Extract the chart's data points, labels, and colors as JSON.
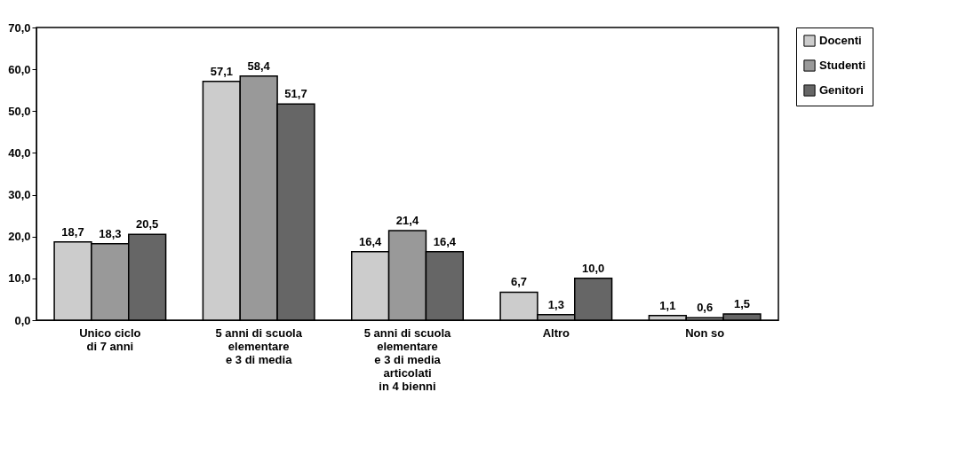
{
  "chart_data": {
    "type": "bar",
    "categories": [
      "Unico ciclo\ndi 7 anni",
      "5 anni di scuola\nelementare\ne 3 di media",
      "5 anni di scuola\nelementare\ne 3 di media\narticolati\nin 4 bienni",
      "Altro",
      "Non so"
    ],
    "series": [
      {
        "name": "Docenti",
        "color": "#cccccc",
        "values": [
          18.7,
          57.1,
          16.4,
          6.7,
          1.1
        ],
        "value_labels": [
          "18,7",
          "57,1",
          "16,4",
          "6,7",
          "1,1"
        ]
      },
      {
        "name": "Studenti",
        "color": "#999999",
        "values": [
          18.3,
          58.4,
          21.4,
          1.3,
          0.6
        ],
        "value_labels": [
          "18,3",
          "58,4",
          "21,4",
          "1,3",
          "0,6"
        ]
      },
      {
        "name": "Genitori",
        "color": "#666666",
        "values": [
          20.5,
          51.7,
          16.4,
          10.0,
          1.5
        ],
        "value_labels": [
          "20,5",
          "51,7",
          "16,4",
          "10,0",
          "1,5"
        ]
      }
    ],
    "ylim": [
      0,
      70
    ],
    "yticks": [
      {
        "value": 0,
        "label": "0,0"
      },
      {
        "value": 10,
        "label": "10,0"
      },
      {
        "value": 20,
        "label": "20,0"
      },
      {
        "value": 30,
        "label": "30,0"
      },
      {
        "value": 40,
        "label": "40,0"
      },
      {
        "value": 50,
        "label": "50,0"
      },
      {
        "value": 60,
        "label": "60,0"
      },
      {
        "value": 70,
        "label": "70,0"
      }
    ],
    "legend": "right"
  }
}
